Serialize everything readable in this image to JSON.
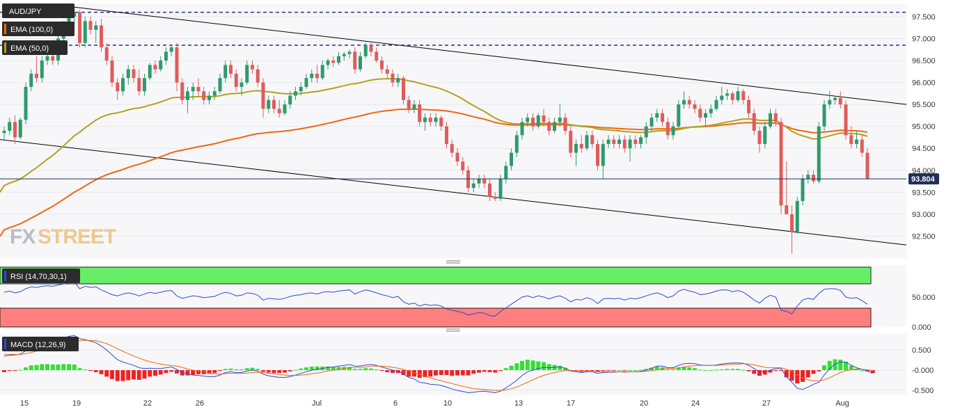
{
  "chart_data": {
    "type": "candlestick",
    "symbol": "AUD/JPY",
    "indicators": [
      "EMA (100,0)",
      "EMA (50,0)"
    ],
    "colors": {
      "up": "#2e9a6e",
      "down": "#e05c5c",
      "ema100": "#f0660f",
      "ema50": "#b3a11c",
      "resistance": "#1f2f8a",
      "trend": "#000000",
      "price_line": "#1f2f56",
      "rsi": "#2a4bd7",
      "rsi_overbought": "#66ee66",
      "rsi_oversold": "#ff7f7f",
      "macd": "#2a4bd7",
      "signal": "#f0660f",
      "hist_up": "#33e033",
      "hist_down": "#ee2222"
    },
    "y_axis": {
      "range": [
        92.0,
        97.8
      ],
      "ticks": [
        "97.500",
        "97.000",
        "96.500",
        "96.000",
        "95.500",
        "95.000",
        "94.500",
        "94.000",
        "93.500",
        "93.000",
        "92.500"
      ]
    },
    "x_ticks": [
      "15",
      "19",
      "22",
      "26",
      "Jul",
      "6",
      "10",
      "13",
      "17",
      "20",
      "24",
      "27",
      "Aug"
    ],
    "current_price": "93.804",
    "resistance_levels": [
      97.6,
      96.85
    ],
    "channel_upper": [
      [
        0,
        97.72
      ],
      [
        200,
        95.5
      ]
    ],
    "channel_lower": [
      [
        0,
        94.7
      ],
      [
        200,
        92.3
      ]
    ],
    "candles": [
      [
        94.85,
        95.0,
        94.7,
        94.9
      ],
      [
        94.9,
        95.2,
        94.8,
        95.1
      ],
      [
        95.1,
        95.25,
        94.6,
        94.75
      ],
      [
        94.75,
        95.2,
        94.7,
        95.15
      ],
      [
        95.15,
        96.0,
        95.05,
        95.9
      ],
      [
        95.9,
        96.3,
        95.8,
        96.2
      ],
      [
        96.2,
        96.6,
        96.0,
        96.1
      ],
      [
        96.1,
        96.6,
        96.0,
        96.5
      ],
      [
        96.5,
        96.7,
        96.4,
        96.6
      ],
      [
        96.6,
        96.9,
        96.4,
        96.5
      ],
      [
        96.5,
        97.1,
        96.4,
        97.0
      ],
      [
        97.0,
        97.4,
        96.9,
        97.3
      ],
      [
        97.3,
        97.6,
        97.2,
        97.5
      ],
      [
        97.5,
        97.7,
        97.3,
        97.6
      ],
      [
        97.6,
        97.65,
        96.8,
        96.9
      ],
      [
        96.9,
        97.5,
        96.8,
        97.4
      ],
      [
        97.4,
        97.5,
        97.1,
        97.2
      ],
      [
        97.2,
        97.4,
        96.9,
        97.3
      ],
      [
        97.3,
        97.45,
        96.7,
        96.8
      ],
      [
        96.8,
        96.9,
        96.4,
        96.5
      ],
      [
        96.5,
        96.6,
        95.9,
        96.0
      ],
      [
        96.0,
        96.1,
        95.6,
        95.8
      ],
      [
        95.8,
        96.2,
        95.7,
        96.1
      ],
      [
        96.1,
        96.4,
        95.95,
        96.3
      ],
      [
        96.3,
        96.4,
        96.0,
        96.1
      ],
      [
        96.1,
        96.3,
        95.7,
        95.8
      ],
      [
        95.8,
        96.2,
        95.7,
        96.1
      ],
      [
        96.1,
        96.45,
        96.05,
        96.4
      ],
      [
        96.4,
        96.5,
        96.2,
        96.3
      ],
      [
        96.3,
        96.6,
        96.25,
        96.5
      ],
      [
        96.5,
        96.8,
        96.4,
        96.7
      ],
      [
        96.7,
        96.85,
        96.6,
        96.8
      ],
      [
        96.8,
        96.9,
        95.8,
        96.0
      ],
      [
        96.0,
        96.1,
        95.5,
        95.6
      ],
      [
        95.6,
        95.9,
        95.3,
        95.8
      ],
      [
        95.8,
        96.0,
        95.6,
        95.9
      ],
      [
        95.9,
        96.1,
        95.7,
        95.8
      ],
      [
        95.8,
        95.9,
        95.5,
        95.6
      ],
      [
        95.6,
        95.8,
        95.5,
        95.7
      ],
      [
        95.7,
        95.9,
        95.6,
        95.8
      ],
      [
        95.8,
        96.2,
        95.75,
        96.1
      ],
      [
        96.1,
        96.5,
        96.0,
        96.4
      ],
      [
        96.4,
        96.5,
        96.1,
        96.2
      ],
      [
        96.2,
        96.3,
        95.8,
        95.9
      ],
      [
        95.9,
        96.1,
        95.7,
        96.0
      ],
      [
        96.0,
        96.5,
        95.95,
        96.4
      ],
      [
        96.4,
        96.5,
        96.2,
        96.3
      ],
      [
        96.3,
        96.4,
        95.9,
        96.0
      ],
      [
        96.0,
        96.1,
        95.2,
        95.4
      ],
      [
        95.4,
        95.7,
        95.3,
        95.6
      ],
      [
        95.6,
        95.7,
        95.3,
        95.4
      ],
      [
        95.4,
        95.6,
        95.2,
        95.3
      ],
      [
        95.3,
        95.6,
        95.25,
        95.5
      ],
      [
        95.5,
        95.8,
        95.4,
        95.7
      ],
      [
        95.7,
        95.9,
        95.6,
        95.8
      ],
      [
        95.8,
        96.0,
        95.7,
        95.9
      ],
      [
        95.9,
        96.2,
        95.85,
        96.1
      ],
      [
        96.1,
        96.3,
        96.0,
        96.2
      ],
      [
        96.2,
        96.4,
        96.0,
        96.1
      ],
      [
        96.1,
        96.5,
        96.05,
        96.4
      ],
      [
        96.4,
        96.55,
        96.3,
        96.5
      ],
      [
        96.5,
        96.6,
        96.35,
        96.45
      ],
      [
        96.45,
        96.7,
        96.4,
        96.6
      ],
      [
        96.6,
        96.7,
        96.5,
        96.65
      ],
      [
        96.65,
        96.75,
        96.55,
        96.7
      ],
      [
        96.7,
        96.8,
        96.2,
        96.3
      ],
      [
        96.3,
        96.7,
        96.25,
        96.6
      ],
      [
        96.6,
        96.9,
        96.55,
        96.85
      ],
      [
        96.85,
        96.9,
        96.6,
        96.7
      ],
      [
        96.7,
        96.8,
        96.45,
        96.5
      ],
      [
        96.5,
        96.6,
        96.2,
        96.3
      ],
      [
        96.3,
        96.4,
        96.1,
        96.2
      ],
      [
        96.2,
        96.3,
        95.9,
        96.0
      ],
      [
        96.0,
        96.2,
        95.9,
        96.1
      ],
      [
        96.1,
        96.15,
        95.5,
        95.6
      ],
      [
        95.6,
        95.7,
        95.3,
        95.4
      ],
      [
        95.4,
        95.6,
        95.3,
        95.5
      ],
      [
        95.5,
        95.6,
        95.0,
        95.1
      ],
      [
        95.1,
        95.3,
        94.9,
        95.2
      ],
      [
        95.2,
        95.3,
        95.0,
        95.1
      ],
      [
        95.1,
        95.3,
        95.0,
        95.2
      ],
      [
        95.2,
        95.25,
        94.9,
        95.0
      ],
      [
        95.0,
        95.1,
        94.5,
        94.6
      ],
      [
        94.6,
        94.7,
        94.3,
        94.4
      ],
      [
        94.4,
        94.5,
        94.1,
        94.2
      ],
      [
        94.2,
        94.3,
        93.9,
        94.0
      ],
      [
        94.0,
        94.1,
        93.5,
        93.6
      ],
      [
        93.6,
        93.8,
        93.5,
        93.7
      ],
      [
        93.7,
        93.9,
        93.6,
        93.8
      ],
      [
        93.8,
        93.9,
        93.6,
        93.7
      ],
      [
        93.7,
        93.8,
        93.3,
        93.4
      ],
      [
        93.4,
        93.5,
        93.3,
        93.35
      ],
      [
        93.35,
        93.9,
        93.3,
        93.8
      ],
      [
        93.8,
        94.2,
        93.7,
        94.1
      ],
      [
        94.1,
        94.5,
        94.0,
        94.4
      ],
      [
        94.4,
        94.9,
        94.3,
        94.8
      ],
      [
        94.8,
        95.2,
        94.7,
        95.1
      ],
      [
        95.1,
        95.3,
        95.0,
        95.2
      ],
      [
        95.2,
        95.3,
        94.9,
        95.0
      ],
      [
        95.0,
        95.3,
        94.95,
        95.25
      ],
      [
        95.25,
        95.4,
        95.0,
        95.1
      ],
      [
        95.1,
        95.2,
        94.8,
        94.9
      ],
      [
        94.9,
        95.2,
        94.85,
        95.1
      ],
      [
        95.1,
        95.5,
        95.0,
        95.2
      ],
      [
        95.2,
        95.3,
        94.8,
        94.9
      ],
      [
        94.9,
        95.0,
        94.3,
        94.4
      ],
      [
        94.4,
        94.7,
        94.1,
        94.6
      ],
      [
        94.6,
        94.8,
        94.4,
        94.5
      ],
      [
        94.5,
        94.9,
        94.45,
        94.8
      ],
      [
        94.8,
        94.9,
        94.5,
        94.6
      ],
      [
        94.6,
        94.7,
        94.0,
        94.1
      ],
      [
        94.1,
        94.7,
        93.8,
        94.6
      ],
      [
        94.6,
        94.8,
        94.5,
        94.7
      ],
      [
        94.7,
        94.8,
        94.5,
        94.6
      ],
      [
        94.6,
        94.8,
        94.5,
        94.7
      ],
      [
        94.7,
        94.8,
        94.4,
        94.5
      ],
      [
        94.5,
        94.8,
        94.2,
        94.7
      ],
      [
        94.7,
        94.8,
        94.5,
        94.6
      ],
      [
        94.6,
        94.8,
        94.5,
        94.75
      ],
      [
        94.75,
        95.1,
        94.6,
        95.0
      ],
      [
        95.0,
        95.3,
        94.9,
        95.2
      ],
      [
        95.2,
        95.4,
        95.1,
        95.3
      ],
      [
        95.3,
        95.4,
        95.0,
        95.1
      ],
      [
        95.1,
        95.2,
        94.7,
        94.8
      ],
      [
        94.8,
        95.1,
        94.7,
        95.0
      ],
      [
        95.0,
        95.6,
        94.95,
        95.5
      ],
      [
        95.5,
        95.8,
        95.4,
        95.6
      ],
      [
        95.6,
        95.7,
        95.4,
        95.5
      ],
      [
        95.5,
        95.6,
        95.3,
        95.4
      ],
      [
        95.4,
        95.5,
        95.1,
        95.2
      ],
      [
        95.2,
        95.4,
        95.0,
        95.3
      ],
      [
        95.3,
        95.5,
        95.2,
        95.4
      ],
      [
        95.4,
        95.7,
        95.35,
        95.6
      ],
      [
        95.6,
        95.9,
        95.5,
        95.7
      ],
      [
        95.7,
        95.85,
        95.6,
        95.75
      ],
      [
        95.75,
        95.8,
        95.5,
        95.6
      ],
      [
        95.6,
        95.9,
        95.55,
        95.8
      ],
      [
        95.8,
        95.85,
        95.5,
        95.6
      ],
      [
        95.6,
        95.7,
        95.2,
        95.3
      ],
      [
        95.3,
        95.4,
        94.8,
        94.9
      ],
      [
        94.9,
        95.0,
        94.4,
        94.6
      ],
      [
        94.6,
        95.1,
        94.5,
        95.0
      ],
      [
        95.0,
        95.4,
        94.95,
        95.3
      ],
      [
        95.3,
        95.4,
        95.0,
        95.1
      ],
      [
        95.1,
        95.2,
        93.0,
        93.2
      ],
      [
        93.2,
        94.2,
        93.0,
        93.0
      ],
      [
        93.0,
        93.2,
        92.1,
        92.6
      ],
      [
        92.6,
        93.4,
        92.55,
        93.3
      ],
      [
        93.3,
        93.9,
        93.2,
        93.8
      ],
      [
        93.8,
        94.0,
        93.7,
        93.9
      ],
      [
        93.9,
        94.0,
        93.7,
        93.75
      ],
      [
        93.75,
        95.1,
        93.7,
        95.0
      ],
      [
        95.0,
        95.6,
        94.9,
        95.5
      ],
      [
        95.5,
        95.8,
        95.4,
        95.6
      ],
      [
        95.6,
        95.7,
        95.5,
        95.65
      ],
      [
        95.65,
        95.8,
        95.4,
        95.5
      ],
      [
        95.5,
        95.6,
        94.7,
        94.8
      ],
      [
        94.8,
        95.0,
        94.5,
        94.6
      ],
      [
        94.6,
        94.9,
        94.5,
        94.7
      ],
      [
        94.7,
        94.8,
        94.3,
        94.4
      ],
      [
        94.4,
        94.5,
        93.8,
        93.804
      ]
    ],
    "rsi": {
      "label": "RSI (14,70,30,1)",
      "overbought": 70,
      "oversold": 30,
      "ticks": [
        "50.000",
        "0.000"
      ],
      "values": [
        58,
        60,
        57,
        59,
        64,
        67,
        66,
        68,
        69,
        68,
        70,
        72,
        74,
        75,
        64,
        68,
        66,
        67,
        62,
        58,
        54,
        52,
        55,
        57,
        55,
        52,
        55,
        58,
        56,
        58,
        60,
        61,
        52,
        48,
        50,
        52,
        51,
        49,
        50,
        51,
        55,
        58,
        56,
        52,
        53,
        57,
        56,
        53,
        45,
        48,
        47,
        46,
        48,
        51,
        53,
        54,
        56,
        57,
        55,
        58,
        59,
        58,
        60,
        61,
        62,
        55,
        59,
        62,
        60,
        57,
        54,
        52,
        49,
        51,
        42,
        38,
        40,
        35,
        38,
        36,
        37,
        35,
        30,
        28,
        26,
        24,
        20,
        22,
        24,
        23,
        19,
        18,
        26,
        32,
        38,
        44,
        50,
        52,
        49,
        52,
        50,
        47,
        50,
        52,
        48,
        42,
        46,
        45,
        49,
        46,
        39,
        47,
        48,
        47,
        48,
        45,
        48,
        47,
        49,
        52,
        55,
        57,
        54,
        49,
        52,
        60,
        63,
        60,
        58,
        54,
        55,
        57,
        60,
        62,
        62,
        59,
        61,
        58,
        52,
        45,
        40,
        48,
        53,
        50,
        28,
        26,
        22,
        35,
        45,
        48,
        46,
        56,
        63,
        64,
        64,
        61,
        50,
        48,
        49,
        44,
        38
      ]
    },
    "macd": {
      "label": "MACD (12,26,9)",
      "ticks": [
        "0.500",
        "-0.000",
        "-0.500"
      ],
      "macd": [
        0.35,
        0.37,
        0.38,
        0.4,
        0.48,
        0.56,
        0.6,
        0.66,
        0.7,
        0.72,
        0.76,
        0.8,
        0.84,
        0.86,
        0.78,
        0.76,
        0.72,
        0.68,
        0.6,
        0.5,
        0.38,
        0.26,
        0.2,
        0.16,
        0.12,
        0.06,
        0.04,
        0.05,
        0.04,
        0.04,
        0.06,
        0.08,
        0.02,
        -0.06,
        -0.1,
        -0.12,
        -0.13,
        -0.15,
        -0.16,
        -0.16,
        -0.12,
        -0.06,
        -0.04,
        -0.06,
        -0.06,
        -0.02,
        0.0,
        -0.02,
        -0.1,
        -0.14,
        -0.16,
        -0.18,
        -0.18,
        -0.16,
        -0.12,
        -0.08,
        -0.04,
        0.0,
        0.02,
        0.04,
        0.07,
        0.08,
        0.1,
        0.12,
        0.14,
        0.1,
        0.1,
        0.13,
        0.14,
        0.12,
        0.08,
        0.04,
        0.0,
        -0.02,
        -0.1,
        -0.18,
        -0.22,
        -0.3,
        -0.32,
        -0.35,
        -0.36,
        -0.38,
        -0.42,
        -0.47,
        -0.5,
        -0.53,
        -0.56,
        -0.55,
        -0.53,
        -0.52,
        -0.54,
        -0.56,
        -0.52,
        -0.44,
        -0.35,
        -0.25,
        -0.13,
        -0.04,
        0.0,
        0.04,
        0.07,
        0.06,
        0.07,
        0.08,
        0.05,
        -0.02,
        -0.04,
        -0.06,
        -0.04,
        -0.04,
        -0.08,
        -0.06,
        -0.05,
        -0.05,
        -0.04,
        -0.05,
        -0.04,
        -0.04,
        -0.03,
        0.0,
        0.05,
        0.1,
        0.1,
        0.06,
        0.06,
        0.12,
        0.16,
        0.17,
        0.16,
        0.13,
        0.12,
        0.12,
        0.13,
        0.15,
        0.17,
        0.18,
        0.18,
        0.17,
        0.12,
        0.04,
        -0.04,
        -0.04,
        0.0,
        0.04,
        0.04,
        -0.16,
        -0.3,
        -0.45,
        -0.48,
        -0.42,
        -0.35,
        -0.3,
        -0.12,
        0.04,
        0.15,
        0.2,
        0.2,
        0.12,
        0.06,
        0.02,
        -0.02,
        -0.08
      ],
      "signal": [
        0.4,
        0.39,
        0.39,
        0.39,
        0.41,
        0.44,
        0.47,
        0.51,
        0.55,
        0.58,
        0.62,
        0.65,
        0.69,
        0.72,
        0.73,
        0.74,
        0.74,
        0.73,
        0.7,
        0.66,
        0.6,
        0.53,
        0.47,
        0.41,
        0.35,
        0.3,
        0.25,
        0.21,
        0.18,
        0.15,
        0.13,
        0.12,
        0.1,
        0.07,
        0.03,
        0.0,
        -0.03,
        -0.05,
        -0.07,
        -0.09,
        -0.1,
        -0.09,
        -0.08,
        -0.08,
        -0.08,
        -0.07,
        -0.06,
        -0.05,
        -0.06,
        -0.08,
        -0.09,
        -0.11,
        -0.12,
        -0.13,
        -0.13,
        -0.12,
        -0.11,
        -0.09,
        -0.07,
        -0.05,
        -0.02,
        0.0,
        0.02,
        0.04,
        0.06,
        0.07,
        0.07,
        0.08,
        0.1,
        0.1,
        0.1,
        0.09,
        0.07,
        0.05,
        0.02,
        -0.02,
        -0.06,
        -0.11,
        -0.15,
        -0.19,
        -0.23,
        -0.26,
        -0.3,
        -0.33,
        -0.37,
        -0.4,
        -0.43,
        -0.46,
        -0.47,
        -0.48,
        -0.49,
        -0.5,
        -0.5,
        -0.49,
        -0.46,
        -0.42,
        -0.36,
        -0.3,
        -0.24,
        -0.18,
        -0.13,
        -0.09,
        -0.06,
        -0.03,
        -0.01,
        -0.01,
        -0.02,
        -0.02,
        -0.03,
        -0.03,
        -0.04,
        -0.04,
        -0.04,
        -0.04,
        -0.04,
        -0.04,
        -0.04,
        -0.04,
        -0.04,
        -0.03,
        -0.01,
        0.01,
        0.03,
        0.04,
        0.04,
        0.06,
        0.08,
        0.1,
        0.11,
        0.12,
        0.12,
        0.12,
        0.12,
        0.13,
        0.14,
        0.15,
        0.15,
        0.16,
        0.15,
        0.13,
        0.1,
        0.07,
        0.06,
        0.06,
        0.06,
        0.02,
        -0.04,
        -0.12,
        -0.19,
        -0.24,
        -0.26,
        -0.27,
        -0.24,
        -0.19,
        -0.12,
        -0.06,
        -0.01,
        0.01,
        0.02,
        0.02,
        0.01,
        -0.01
      ]
    }
  }
}
